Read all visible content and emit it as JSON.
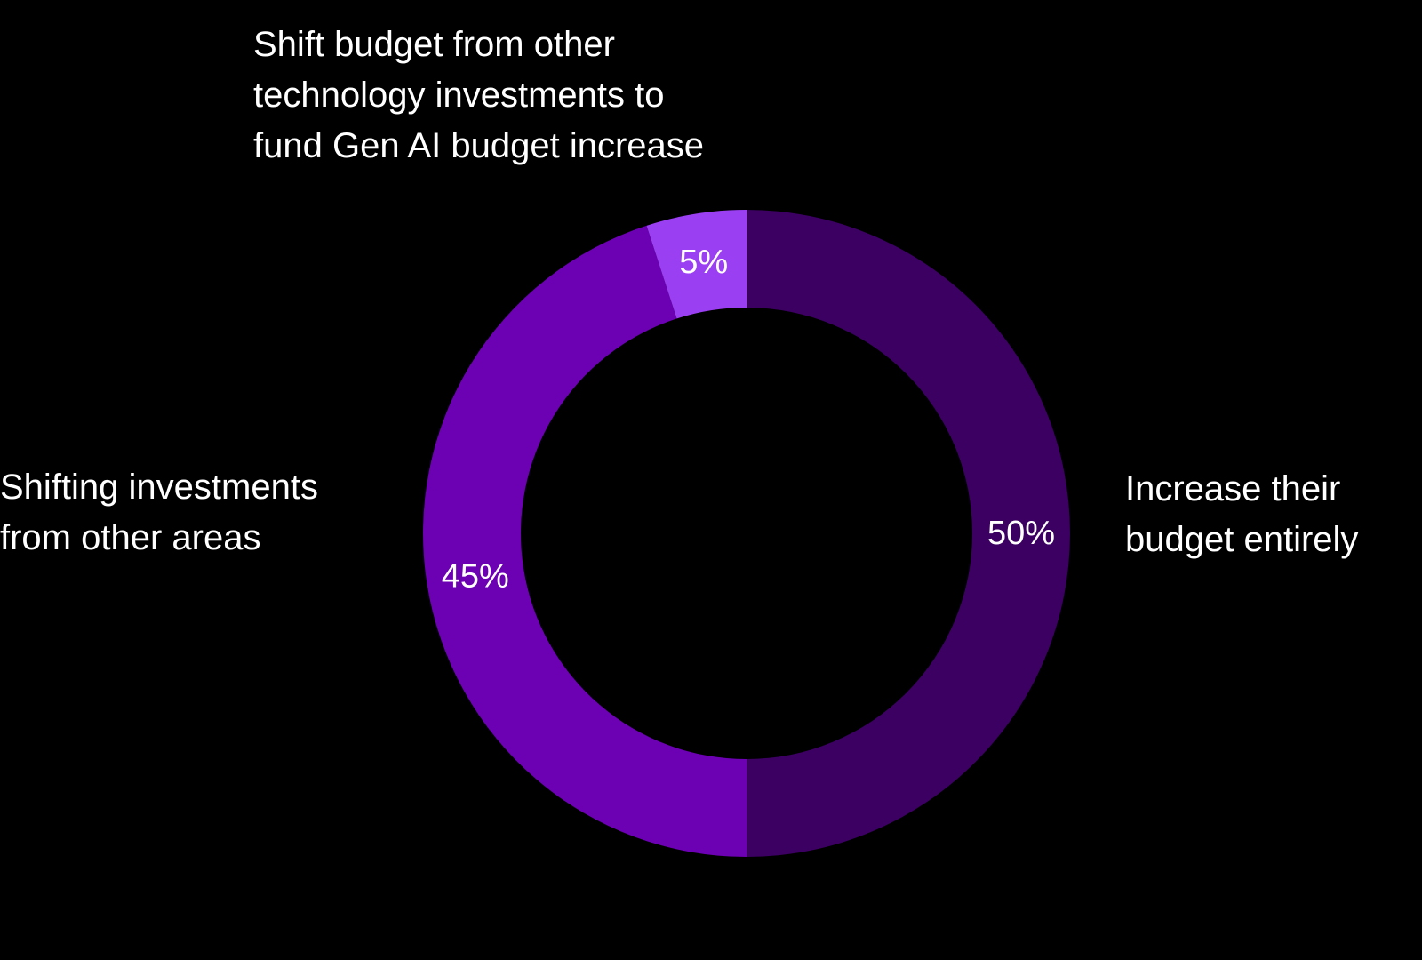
{
  "chart_data": {
    "type": "pie",
    "donut": true,
    "slices": [
      {
        "label": "Increase their\nbudget entirely",
        "value": 50,
        "value_label": "50%",
        "color": "#3b0062"
      },
      {
        "label": "Shifting investments\nfrom other areas",
        "value": 45,
        "value_label": "45%",
        "color": "#6c00b3"
      },
      {
        "label": "Shift budget from other\ntechnology investments to\nfund Gen AI budget increase",
        "value": 5,
        "value_label": "5%",
        "color": "#9b3ff2"
      }
    ]
  }
}
